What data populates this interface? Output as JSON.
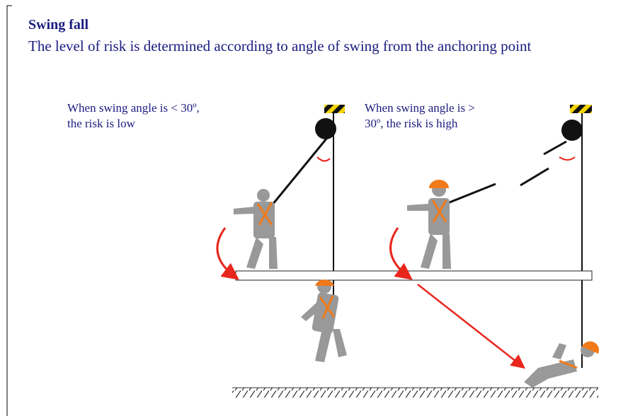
{
  "header": {
    "title": "Swing fall",
    "description": "The level of risk is determined according to angle of swing from the anchoring point"
  },
  "labels": [
    {
      "lines": [
        "When swing angle is < 30º,",
        "the risk is low"
      ]
    },
    {
      "lines": [
        "When swing angle is >",
        "30º, the risk is high"
      ]
    }
  ]
}
